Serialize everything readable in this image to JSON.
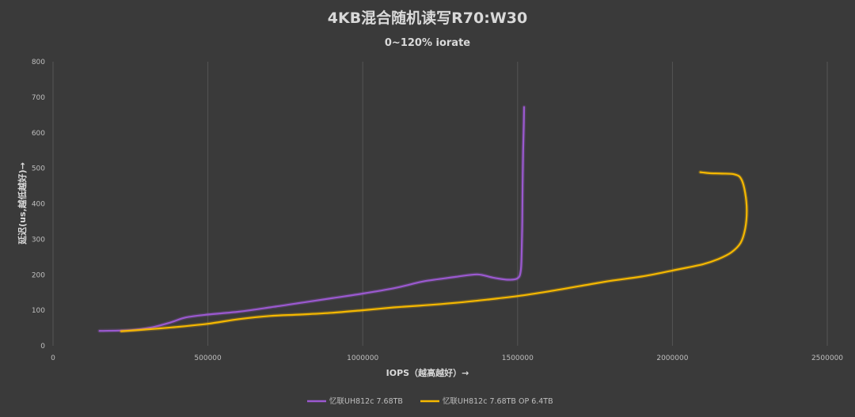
{
  "chart_data": {
    "type": "line",
    "title": "4KB混合随机读写R70:W30",
    "subtitle": "0~120% iorate",
    "xlabel": "IOPS（越高越好）→",
    "ylabel": "延迟(us,越低越好)→",
    "xlim": [
      0,
      2500000
    ],
    "ylim": [
      0,
      800
    ],
    "x_ticks": [
      0,
      500000,
      1000000,
      1500000,
      2000000,
      2500000
    ],
    "x_tick_labels": [
      "0",
      "500000",
      "1000000",
      "1500000",
      "2000000",
      "2500000"
    ],
    "y_ticks": [
      0,
      100,
      200,
      300,
      400,
      500,
      600,
      700,
      800
    ],
    "y_tick_labels": [
      "0",
      "100",
      "200",
      "300",
      "400",
      "500",
      "600",
      "700",
      "800"
    ],
    "grid": "vertical",
    "legend_position": "bottom",
    "series": [
      {
        "name": "忆联UH812c 7.68TB",
        "color": "#9b59d0",
        "points": [
          [
            150000,
            42
          ],
          [
            250000,
            44
          ],
          [
            320000,
            52
          ],
          [
            380000,
            66
          ],
          [
            430000,
            80
          ],
          [
            500000,
            88
          ],
          [
            600000,
            96
          ],
          [
            700000,
            108
          ],
          [
            800000,
            121
          ],
          [
            900000,
            134
          ],
          [
            1000000,
            147
          ],
          [
            1100000,
            162
          ],
          [
            1150000,
            172
          ],
          [
            1200000,
            182
          ],
          [
            1300000,
            194
          ],
          [
            1370000,
            201
          ],
          [
            1420000,
            192
          ],
          [
            1470000,
            186
          ],
          [
            1500000,
            190
          ],
          [
            1510000,
            210
          ],
          [
            1513000,
            260
          ],
          [
            1515000,
            350
          ],
          [
            1516000,
            450
          ],
          [
            1518000,
            550
          ],
          [
            1520000,
            620
          ],
          [
            1521000,
            672
          ]
        ]
      },
      {
        "name": "忆联UH812c 7.68TB OP 6.4TB",
        "color": "#f5b800",
        "points": [
          [
            220000,
            41
          ],
          [
            300000,
            46
          ],
          [
            400000,
            53
          ],
          [
            500000,
            62
          ],
          [
            600000,
            75
          ],
          [
            700000,
            84
          ],
          [
            800000,
            88
          ],
          [
            900000,
            93
          ],
          [
            1000000,
            100
          ],
          [
            1100000,
            108
          ],
          [
            1200000,
            114
          ],
          [
            1300000,
            121
          ],
          [
            1400000,
            130
          ],
          [
            1500000,
            140
          ],
          [
            1600000,
            153
          ],
          [
            1700000,
            168
          ],
          [
            1800000,
            183
          ],
          [
            1900000,
            195
          ],
          [
            2000000,
            212
          ],
          [
            2100000,
            230
          ],
          [
            2150000,
            245
          ],
          [
            2190000,
            263
          ],
          [
            2220000,
            290
          ],
          [
            2235000,
            330
          ],
          [
            2240000,
            380
          ],
          [
            2235000,
            430
          ],
          [
            2222000,
            470
          ],
          [
            2200000,
            483
          ],
          [
            2160000,
            485
          ],
          [
            2120000,
            486
          ],
          [
            2090000,
            489
          ]
        ]
      }
    ]
  }
}
